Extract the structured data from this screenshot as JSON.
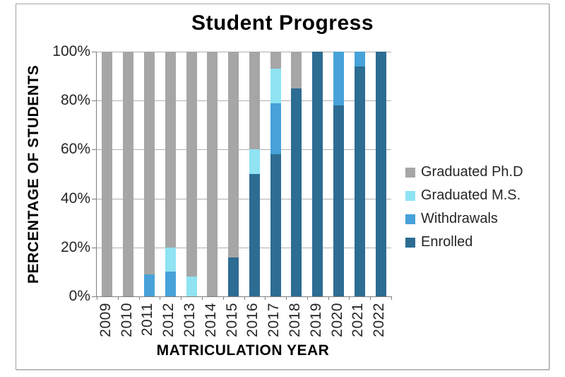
{
  "chart_data": {
    "type": "bar",
    "stacked": true,
    "title": "Student Progress",
    "xlabel": "MATRICULATION YEAR",
    "ylabel": "PERCENTAGE OF STUDENTS",
    "categories": [
      "2009",
      "2010",
      "2011",
      "2012",
      "2013",
      "2014",
      "2015",
      "2016",
      "2017",
      "2018",
      "2019",
      "2020",
      "2021",
      "2022"
    ],
    "series": [
      {
        "name": "Enrolled",
        "color": "#2d6c93",
        "values": [
          0,
          0,
          0,
          0,
          0,
          0,
          16,
          50,
          58,
          85,
          100,
          78,
          94,
          100
        ]
      },
      {
        "name": "Withdrawals",
        "color": "#46a2d9",
        "values": [
          0,
          0,
          9,
          10,
          0,
          0,
          0,
          0,
          21,
          0,
          0,
          22,
          6,
          0
        ]
      },
      {
        "name": "Graduated M.S.",
        "color": "#8fe3f2",
        "values": [
          0,
          0,
          0,
          10,
          8,
          0,
          0,
          10,
          14,
          0,
          0,
          0,
          0,
          0
        ]
      },
      {
        "name": "Graduated Ph.D",
        "color": "#a6a6a6",
        "values": [
          100,
          100,
          91,
          80,
          92,
          100,
          84,
          40,
          7,
          15,
          0,
          0,
          0,
          0
        ]
      }
    ],
    "stack_order": "bottom-to-top",
    "legend_order": [
      "Graduated Ph.D",
      "Graduated M.S.",
      "Withdrawals",
      "Enrolled"
    ],
    "legend_position": "right",
    "y_ticks": [
      "100%",
      "80%",
      "60%",
      "40%",
      "20%",
      "0%"
    ],
    "ylim": [
      0,
      100
    ],
    "grid": true,
    "x_tick_rotation": -90,
    "colors": {
      "gridline": "#b0b0b0",
      "axis": "#7f7f7f",
      "frame_border": "#a3a3a3",
      "background": "#ffffff"
    }
  }
}
